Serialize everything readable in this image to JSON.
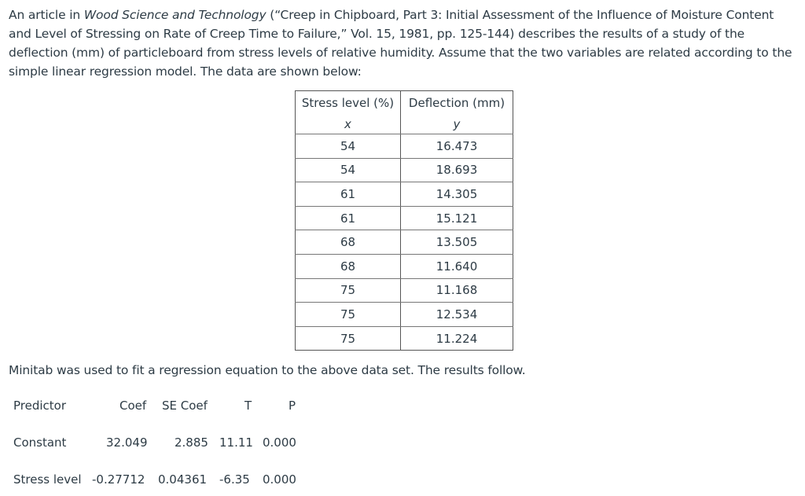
{
  "intro": {
    "part1": "An article in ",
    "journal": "Wood Science and Technology",
    "part2": " (“Creep in Chipboard, Part 3: Initial Assessment of the Influence of Moisture Content and Level of Stressing on Rate of Creep Time to Failure,” Vol. 15, 1981, pp. 125-144) describes the results of a study of the deflection (mm) of particleboard from stress levels of relative humidity. Assume that the two variables are related according to the simple linear regression model. The data are shown below:"
  },
  "table": {
    "headers": [
      "Stress level (%)",
      "Deflection (mm)"
    ],
    "symbols": [
      "x",
      "y"
    ],
    "rows": [
      [
        "54",
        "16.473"
      ],
      [
        "54",
        "18.693"
      ],
      [
        "61",
        "14.305"
      ],
      [
        "61",
        "15.121"
      ],
      [
        "68",
        "13.505"
      ],
      [
        "68",
        "11.640"
      ],
      [
        "75",
        "11.168"
      ],
      [
        "75",
        "12.534"
      ],
      [
        "75",
        "11.224"
      ]
    ]
  },
  "minitab_text": "Minitab was used to fit a regression equation to the above data set. The results follow.",
  "regression": {
    "headers": {
      "predictor": "Predictor",
      "coef": "Coef",
      "se_coef": "SE Coef",
      "t": "T",
      "p": "P"
    },
    "constant": {
      "predictor": "Constant",
      "coef": "32.049",
      "se_coef": "2.885",
      "t": "11.11",
      "p": "0.000"
    },
    "stress": {
      "predictor": "Stress level",
      "coef": "-0.27712",
      "se_coef": "0.04361",
      "t": "-6.35",
      "p": "0.000"
    }
  }
}
